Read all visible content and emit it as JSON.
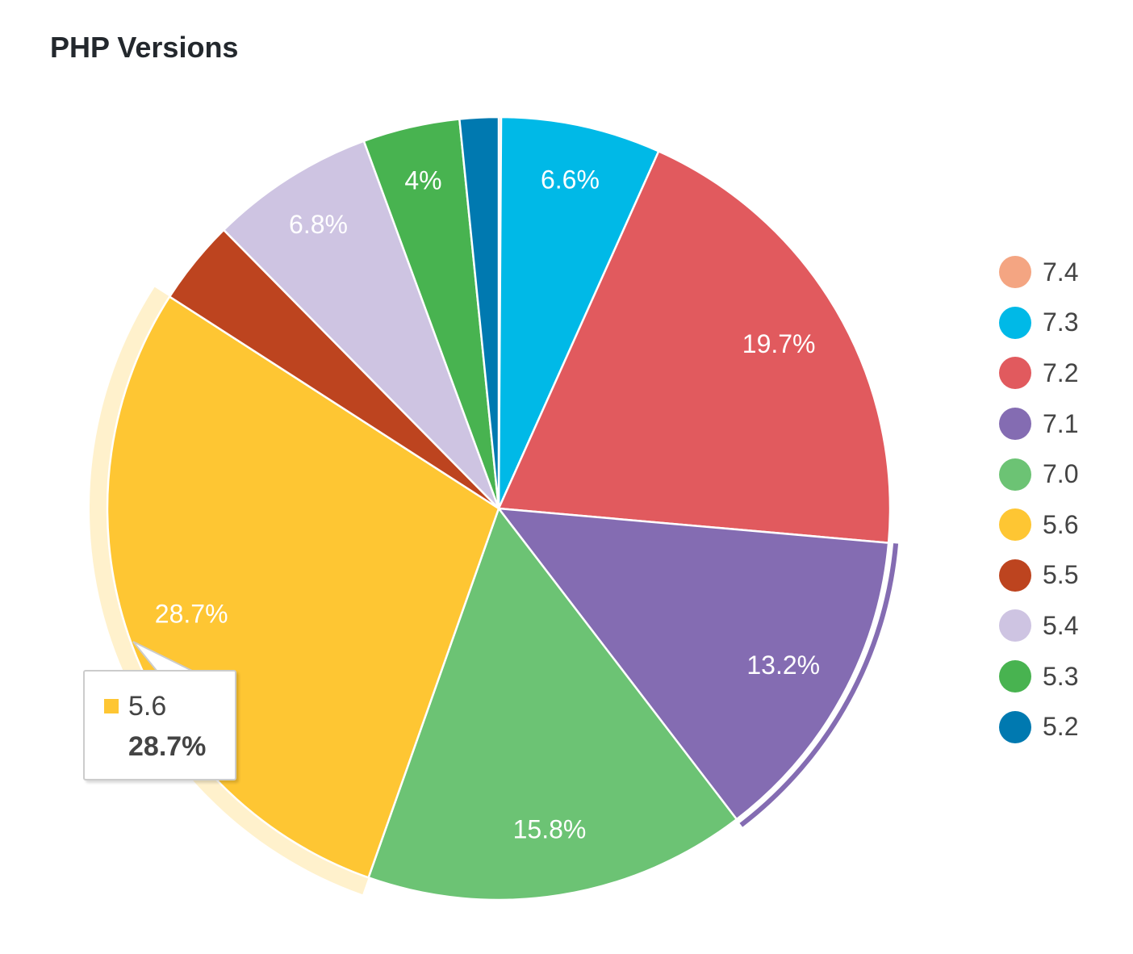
{
  "chart_data": {
    "type": "pie",
    "title": "PHP Versions",
    "start_angle": "top, clockwise",
    "legend_position": "right",
    "slices": [
      {
        "label": "7.4",
        "value": 0.1,
        "color": "#f4a582",
        "data_label": ""
      },
      {
        "label": "7.3",
        "value": 6.6,
        "color": "#00b9e7",
        "data_label": "6.6%"
      },
      {
        "label": "7.2",
        "value": 19.7,
        "color": "#e15a5e",
        "data_label": "19.7%"
      },
      {
        "label": "7.1",
        "value": 13.2,
        "color": "#846cb2",
        "data_label": "13.2%"
      },
      {
        "label": "7.0",
        "value": 15.8,
        "color": "#6cc374",
        "data_label": "15.8%"
      },
      {
        "label": "5.6",
        "value": 28.7,
        "color": "#fec633",
        "data_label": "28.7%"
      },
      {
        "label": "5.5",
        "value": 3.5,
        "color": "#bd441f",
        "data_label": ""
      },
      {
        "label": "5.4",
        "value": 6.8,
        "color": "#cec4e2",
        "data_label": "6.8%"
      },
      {
        "label": "5.3",
        "value": 4.0,
        "color": "#48b350",
        "data_label": "4%"
      },
      {
        "label": "5.2",
        "value": 1.6,
        "color": "#0079b0",
        "data_label": ""
      }
    ],
    "hovered": "5.6",
    "selected": "7.1",
    "tooltip": {
      "label": "5.6",
      "value": "28.7%"
    }
  }
}
